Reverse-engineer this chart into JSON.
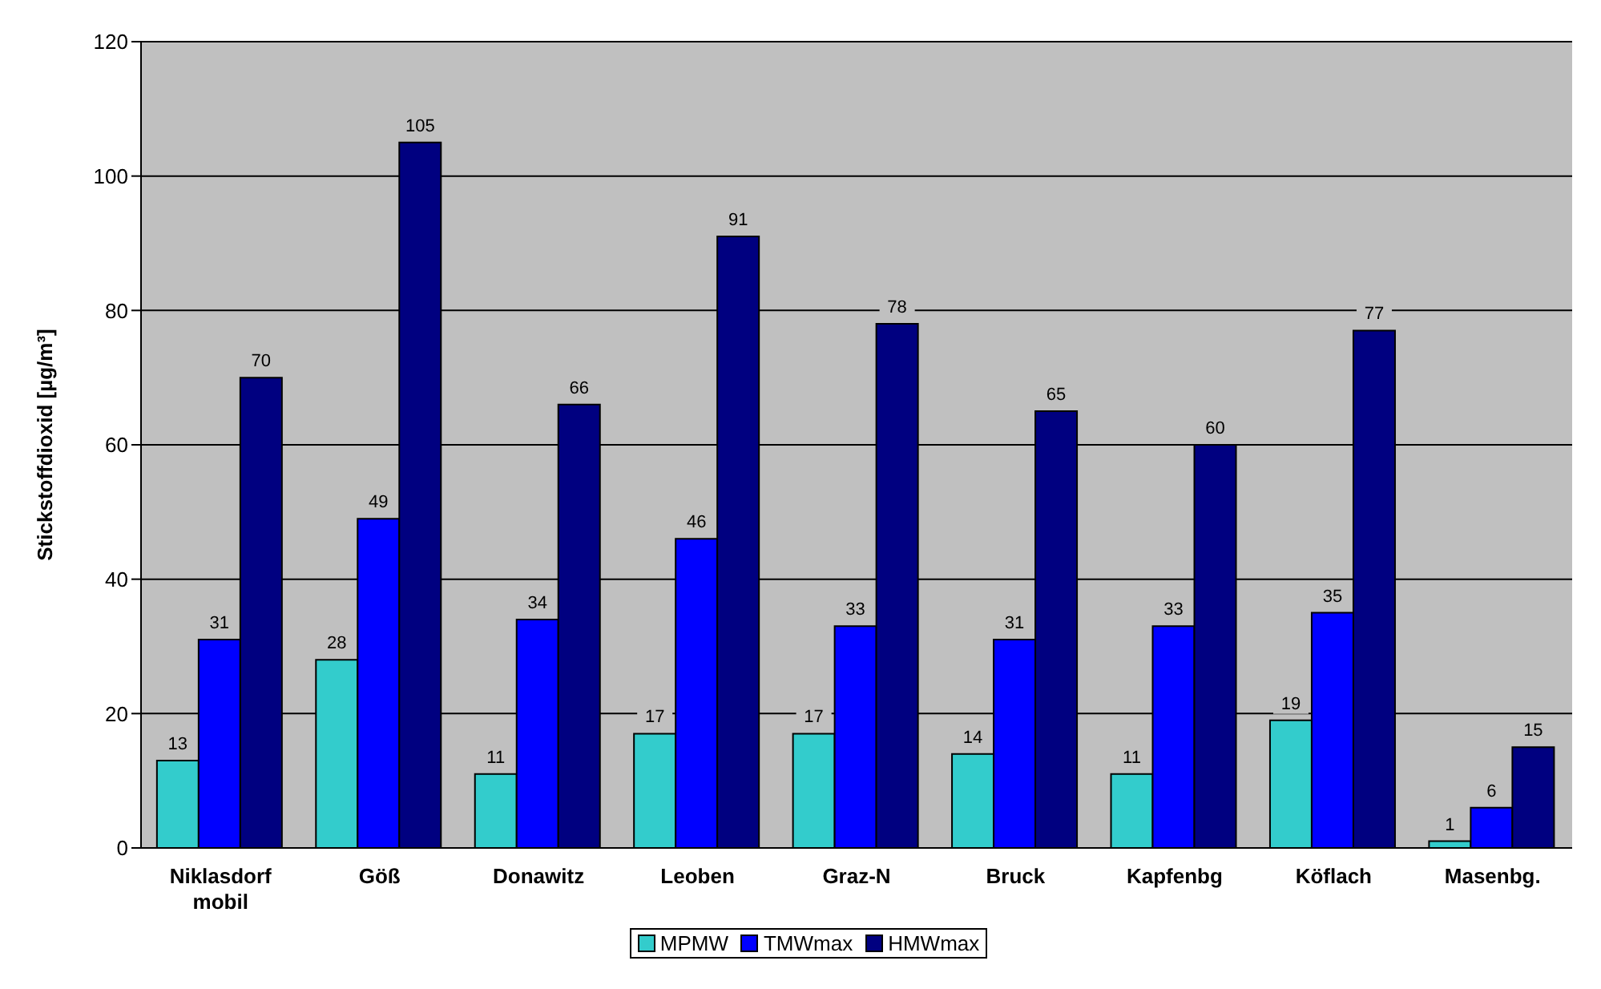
{
  "chart_data": {
    "type": "bar",
    "ylabel": "Stickstoffdioxid [µg/m³]",
    "categories": [
      "Niklasdorf mobil",
      "Göß",
      "Donawitz",
      "Leoben",
      "Graz-N",
      "Bruck",
      "Kapfenbg",
      "Köflach",
      "Masenbg."
    ],
    "series": [
      {
        "name": "MPMW",
        "color": "#33cccc",
        "values": [
          13,
          28,
          11,
          17,
          17,
          14,
          11,
          19,
          1
        ]
      },
      {
        "name": "TMWmax",
        "color": "#0000ff",
        "values": [
          31,
          49,
          34,
          46,
          33,
          31,
          33,
          35,
          6
        ]
      },
      {
        "name": "HMWmax",
        "color": "#000080",
        "values": [
          70,
          105,
          66,
          91,
          78,
          65,
          60,
          77,
          15
        ]
      }
    ],
    "ylim": [
      0,
      120
    ],
    "yticks": [
      0,
      20,
      40,
      60,
      80,
      100,
      120
    ],
    "grid": "y",
    "legend": "bottom",
    "data_labels": true
  }
}
